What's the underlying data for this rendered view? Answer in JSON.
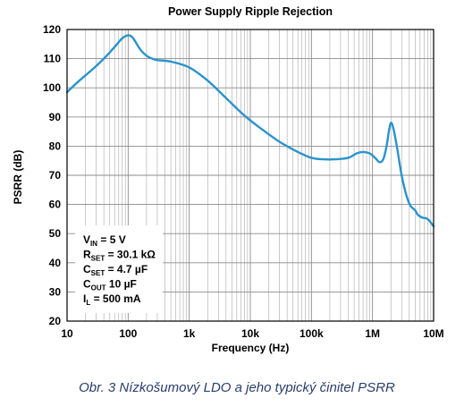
{
  "chart_data": {
    "type": "line",
    "title": "Power Supply Ripple Rejection",
    "xlabel": "Frequency (Hz)",
    "ylabel": "PSRR (dB)",
    "x_scale": "log",
    "xlim": [
      10,
      10000000
    ],
    "ylim": [
      20,
      120
    ],
    "grid": true,
    "x_ticks": [
      {
        "value": 10,
        "label": "10"
      },
      {
        "value": 100,
        "label": "100"
      },
      {
        "value": 1000,
        "label": "1k"
      },
      {
        "value": 10000,
        "label": "10k"
      },
      {
        "value": 100000,
        "label": "100k"
      },
      {
        "value": 1000000,
        "label": "1M"
      },
      {
        "value": 10000000,
        "label": "10M"
      }
    ],
    "y_ticks": [
      {
        "value": 20,
        "label": "20"
      },
      {
        "value": 30,
        "label": "30"
      },
      {
        "value": 40,
        "label": "40"
      },
      {
        "value": 50,
        "label": "50"
      },
      {
        "value": 60,
        "label": "60"
      },
      {
        "value": 70,
        "label": "70"
      },
      {
        "value": 80,
        "label": "80"
      },
      {
        "value": 90,
        "label": "90"
      },
      {
        "value": 100,
        "label": "100"
      },
      {
        "value": 110,
        "label": "110"
      },
      {
        "value": 120,
        "label": "120"
      }
    ],
    "series": [
      {
        "color": "#2a93cc",
        "points": [
          [
            10,
            98.5
          ],
          [
            15,
            102
          ],
          [
            25,
            106
          ],
          [
            40,
            110
          ],
          [
            60,
            114
          ],
          [
            80,
            117
          ],
          [
            100,
            118
          ],
          [
            115,
            117.5
          ],
          [
            130,
            116
          ],
          [
            160,
            113
          ],
          [
            200,
            111
          ],
          [
            250,
            110
          ],
          [
            300,
            109.5
          ],
          [
            500,
            109
          ],
          [
            1000,
            107
          ],
          [
            2000,
            102.5
          ],
          [
            4000,
            96.5
          ],
          [
            8000,
            90.5
          ],
          [
            15000,
            86
          ],
          [
            30000,
            81.5
          ],
          [
            60000,
            78
          ],
          [
            100000,
            76
          ],
          [
            150000,
            75.5
          ],
          [
            250000,
            75.5
          ],
          [
            400000,
            76
          ],
          [
            550000,
            77.5
          ],
          [
            700000,
            78
          ],
          [
            900000,
            77.5
          ],
          [
            1100000,
            76
          ],
          [
            1300000,
            74.5
          ],
          [
            1500000,
            75.5
          ],
          [
            1700000,
            80
          ],
          [
            1850000,
            85
          ],
          [
            2000000,
            88
          ],
          [
            2200000,
            86
          ],
          [
            2500000,
            80
          ],
          [
            3000000,
            70
          ],
          [
            3600000,
            63
          ],
          [
            4200000,
            59.5
          ],
          [
            5000000,
            58
          ],
          [
            5500000,
            56.5
          ],
          [
            6500000,
            55.5
          ],
          [
            8000000,
            55
          ],
          [
            10000000,
            52.5
          ]
        ]
      }
    ]
  },
  "annotation": {
    "lines": [
      {
        "main": "V",
        "sub": "IN",
        "rest": " = 5 V"
      },
      {
        "main": "R",
        "sub": "SET",
        "rest": " = 30.1 kΩ"
      },
      {
        "main": "C",
        "sub": "SET",
        "rest": " = 4.7 µF"
      },
      {
        "main": "C",
        "sub": "OUT",
        "rest": " 10 µF"
      },
      {
        "main": "I",
        "sub": "L",
        "rest": " = 500 mA"
      }
    ]
  },
  "caption": "Obr. 3  Nízkošumový LDO a jeho typický činitel PSRR"
}
